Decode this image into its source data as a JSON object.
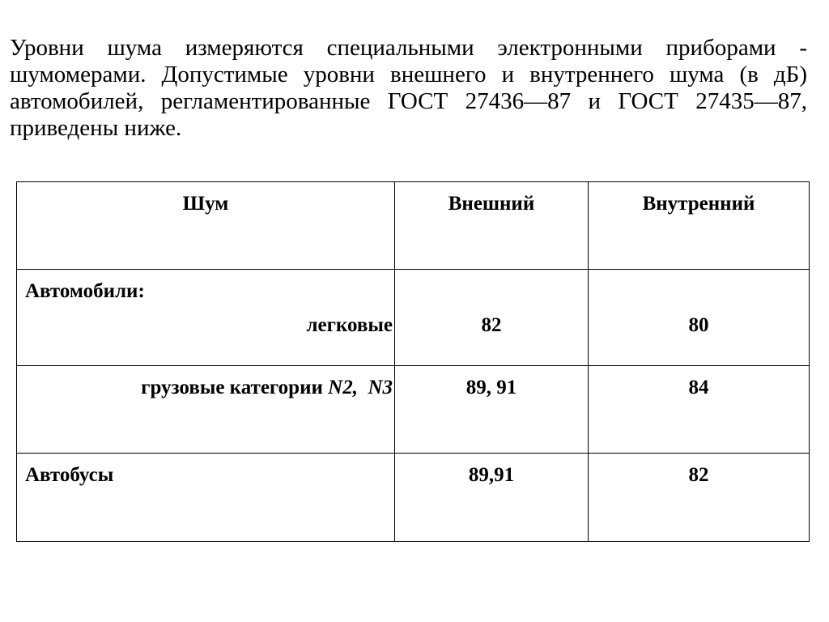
{
  "intro": "Уровни шума измеряются специальными электронными приборами - шумомерами. Допустимые уровни внешнего и внутреннего шума (в дБ) автомобилей, регламентированные ГОСТ 27436—87 и ГОСТ 27435—87, приведены ниже.",
  "table": {
    "headers": [
      "Шум",
      "Внешний",
      "Внутренний"
    ],
    "rows": [
      {
        "group": "Автомобили:",
        "label": "легковые",
        "external": "82",
        "internal": "80"
      },
      {
        "label": "грузовые категории",
        "label_italic": "N2,  N3",
        "external": "89, 91",
        "internal": "84"
      },
      {
        "label": "Автобусы",
        "external": "89,91",
        "internal": "82"
      }
    ]
  }
}
